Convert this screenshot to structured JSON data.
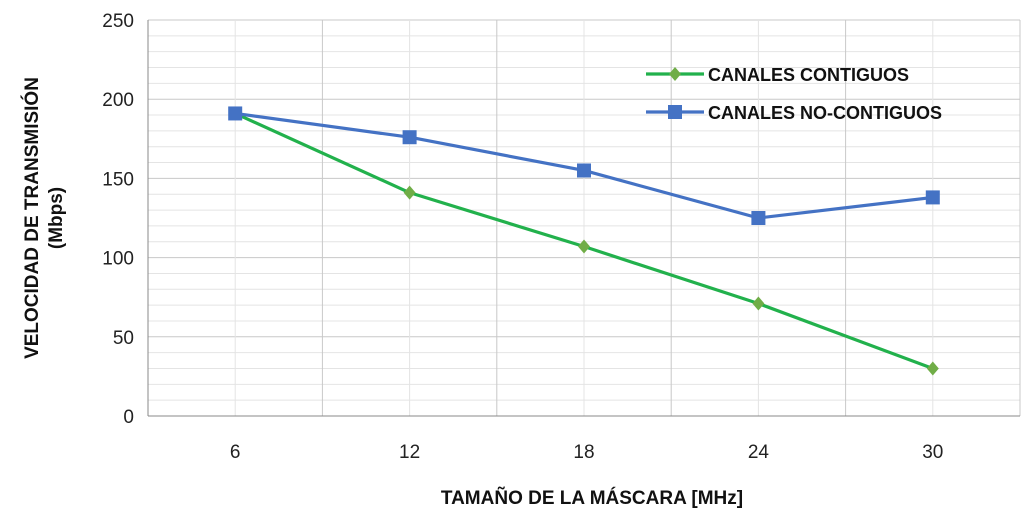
{
  "chart_data": {
    "type": "line",
    "xlabel": "TAMAÑO DE LA MÁSCARA [MHz]",
    "ylabel_line1": "VELOCIDAD DE TRANSMISIÓN",
    "ylabel_line2": "(Mbps)",
    "x": [
      6,
      12,
      18,
      24,
      30
    ],
    "x_tick_labels": [
      "6",
      "12",
      "18",
      "24",
      "30"
    ],
    "ylim": [
      0,
      250
    ],
    "y_ticks": [
      0,
      50,
      100,
      150,
      200,
      250
    ],
    "y_tick_labels": [
      "0",
      "50",
      "100",
      "150",
      "200",
      "250"
    ],
    "grid": true,
    "legend_position": "top-right",
    "series": [
      {
        "name": "CANALES CONTIGUOS",
        "color": "#22b14c",
        "marker_color": "#70ad47",
        "marker": "diamond",
        "values": [
          191,
          141,
          107,
          71,
          30
        ]
      },
      {
        "name": "CANALES NO-CONTIGUOS",
        "color": "#4472c4",
        "marker_color": "#4472c4",
        "marker": "square",
        "values": [
          191,
          176,
          155,
          125,
          138
        ]
      }
    ]
  }
}
